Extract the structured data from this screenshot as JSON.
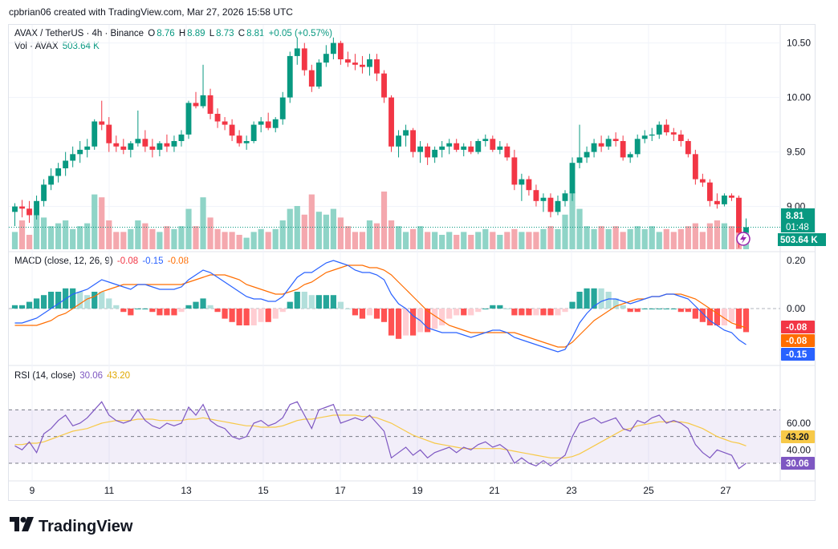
{
  "header": {
    "caption": "cpbrian06 created with TradingView.com, Mar 27, 2026 15:58 UTC"
  },
  "legend": {
    "symbol": "AVAX / TetherUS · 4h · Binance",
    "o_label": "O",
    "o": "8.76",
    "h_label": "H",
    "h": "8.89",
    "l_label": "L",
    "l": "8.73",
    "c_label": "C",
    "c": "8.81",
    "change": "+0.05 (+0.57%)",
    "vol_label": "Vol · AVAX",
    "vol": "503.64 K",
    "macd_label": "MACD (close, 12, 26, 9)",
    "macd_hist": "-0.08",
    "macd_line": "-0.15",
    "macd_signal": "-0.08",
    "rsi_label": "RSI (14, close)",
    "rsi": "30.06",
    "rsi_ma": "43.20"
  },
  "price_axis": [
    "10.50",
    "10.00",
    "9.50",
    "9.00"
  ],
  "macd_axis": [
    "0.20",
    "0.00"
  ],
  "rsi_axis": [
    "60.00",
    "40.00"
  ],
  "time_axis": [
    "9",
    "11",
    "13",
    "15",
    "17",
    "19",
    "21",
    "23",
    "25",
    "27"
  ],
  "badges": {
    "price": "8.81",
    "countdown": "01:48",
    "volume": "503.64 K",
    "macd_hist": "-0.08",
    "macd_signal": "-0.08",
    "macd_line": "-0.15",
    "rsi_ma": "43.20",
    "rsi": "30.06"
  },
  "colors": {
    "up": "#089981",
    "down": "#f23645",
    "vol_up": "#8fd4c7",
    "vol_down": "#f4a8ae",
    "macd_line": "#2962ff",
    "signal": "#ff6d00",
    "rsi": "#7e57c2",
    "rsi_ma": "#f7c948"
  },
  "brand": "TradingView",
  "chart_data": {
    "type": "candlestick",
    "title": "AVAX / TetherUS · 4h · Binance",
    "ylim": [
      8.6,
      10.6
    ],
    "x_ticks": [
      "9",
      "11",
      "13",
      "15",
      "17",
      "19",
      "21",
      "23",
      "25",
      "27"
    ],
    "ohlc": [
      [
        8.95,
        9.03,
        8.82,
        9.0
      ],
      [
        9.0,
        9.06,
        8.9,
        8.98
      ],
      [
        8.98,
        9.05,
        8.85,
        8.92
      ],
      [
        8.92,
        9.1,
        8.88,
        9.05
      ],
      [
        9.05,
        9.25,
        9.0,
        9.2
      ],
      [
        9.2,
        9.35,
        9.15,
        9.28
      ],
      [
        9.28,
        9.4,
        9.22,
        9.35
      ],
      [
        9.35,
        9.5,
        9.28,
        9.42
      ],
      [
        9.42,
        9.55,
        9.36,
        9.48
      ],
      [
        9.48,
        9.6,
        9.4,
        9.52
      ],
      [
        9.52,
        9.62,
        9.45,
        9.55
      ],
      [
        9.55,
        9.8,
        9.52,
        9.78
      ],
      [
        9.78,
        9.97,
        9.7,
        9.75
      ],
      [
        9.75,
        9.82,
        9.5,
        9.58
      ],
      [
        9.58,
        9.65,
        9.5,
        9.55
      ],
      [
        9.55,
        9.62,
        9.48,
        9.52
      ],
      [
        9.52,
        9.6,
        9.45,
        9.58
      ],
      [
        9.58,
        9.88,
        9.55,
        9.62
      ],
      [
        9.62,
        9.7,
        9.5,
        9.55
      ],
      [
        9.55,
        9.62,
        9.45,
        9.52
      ],
      [
        9.52,
        9.6,
        9.46,
        9.58
      ],
      [
        9.58,
        9.66,
        9.5,
        9.55
      ],
      [
        9.55,
        9.65,
        9.5,
        9.6
      ],
      [
        9.6,
        9.7,
        9.55,
        9.66
      ],
      [
        9.66,
        9.97,
        9.62,
        9.95
      ],
      [
        9.95,
        10.05,
        9.9,
        9.92
      ],
      [
        9.92,
        10.3,
        9.9,
        10.02
      ],
      [
        10.02,
        10.08,
        9.8,
        9.85
      ],
      [
        9.85,
        9.9,
        9.72,
        9.78
      ],
      [
        9.78,
        9.82,
        9.7,
        9.75
      ],
      [
        9.75,
        9.8,
        9.6,
        9.65
      ],
      [
        9.65,
        9.7,
        9.55,
        9.58
      ],
      [
        9.58,
        9.65,
        9.52,
        9.6
      ],
      [
        9.6,
        9.78,
        9.58,
        9.75
      ],
      [
        9.75,
        9.82,
        9.68,
        9.78
      ],
      [
        9.78,
        9.86,
        9.7,
        9.72
      ],
      [
        9.72,
        9.82,
        9.68,
        9.8
      ],
      [
        9.8,
        10.05,
        9.75,
        10.0
      ],
      [
        10.0,
        10.42,
        9.95,
        10.38
      ],
      [
        10.38,
        10.55,
        10.3,
        10.45
      ],
      [
        10.45,
        10.5,
        10.2,
        10.25
      ],
      [
        10.25,
        10.3,
        10.05,
        10.1
      ],
      [
        10.1,
        10.35,
        10.08,
        10.32
      ],
      [
        10.32,
        10.48,
        10.28,
        10.4
      ],
      [
        10.4,
        10.55,
        10.35,
        10.5
      ],
      [
        10.5,
        10.52,
        10.3,
        10.35
      ],
      [
        10.35,
        10.42,
        10.28,
        10.32
      ],
      [
        10.32,
        10.4,
        10.25,
        10.3
      ],
      [
        10.3,
        10.38,
        10.22,
        10.28
      ],
      [
        10.28,
        10.4,
        10.2,
        10.35
      ],
      [
        10.35,
        10.4,
        10.15,
        10.22
      ],
      [
        10.22,
        10.25,
        9.95,
        10.0
      ],
      [
        10.0,
        10.02,
        9.5,
        9.55
      ],
      [
        9.55,
        9.7,
        9.45,
        9.65
      ],
      [
        9.65,
        9.75,
        9.55,
        9.7
      ],
      [
        9.7,
        9.72,
        9.45,
        9.5
      ],
      [
        9.5,
        9.6,
        9.4,
        9.55
      ],
      [
        9.55,
        9.58,
        9.38,
        9.45
      ],
      [
        9.45,
        9.55,
        9.4,
        9.52
      ],
      [
        9.52,
        9.6,
        9.45,
        9.55
      ],
      [
        9.55,
        9.62,
        9.48,
        9.58
      ],
      [
        9.58,
        9.62,
        9.5,
        9.52
      ],
      [
        9.52,
        9.58,
        9.46,
        9.55
      ],
      [
        9.55,
        9.6,
        9.48,
        9.5
      ],
      [
        9.5,
        9.62,
        9.48,
        9.6
      ],
      [
        9.6,
        9.66,
        9.55,
        9.62
      ],
      [
        9.62,
        9.65,
        9.5,
        9.52
      ],
      [
        9.52,
        9.6,
        9.48,
        9.55
      ],
      [
        9.55,
        9.58,
        9.42,
        9.45
      ],
      [
        9.45,
        9.52,
        9.15,
        9.2
      ],
      [
        9.2,
        9.3,
        9.05,
        9.25
      ],
      [
        9.25,
        9.28,
        9.1,
        9.15
      ],
      [
        9.15,
        9.2,
        9.0,
        9.05
      ],
      [
        9.05,
        9.12,
        8.95,
        9.08
      ],
      [
        9.08,
        9.12,
        8.9,
        8.95
      ],
      [
        8.95,
        9.1,
        8.92,
        9.05
      ],
      [
        9.05,
        9.15,
        9.0,
        9.12
      ],
      [
        9.12,
        9.45,
        9.05,
        9.4
      ],
      [
        9.4,
        9.75,
        9.35,
        9.45
      ],
      [
        9.45,
        9.55,
        9.4,
        9.5
      ],
      [
        9.5,
        9.62,
        9.45,
        9.58
      ],
      [
        9.58,
        9.65,
        9.5,
        9.55
      ],
      [
        9.55,
        9.65,
        9.52,
        9.62
      ],
      [
        9.62,
        9.68,
        9.55,
        9.6
      ],
      [
        9.6,
        9.65,
        9.42,
        9.45
      ],
      [
        9.45,
        9.5,
        9.4,
        9.48
      ],
      [
        9.48,
        9.66,
        9.45,
        9.62
      ],
      [
        9.62,
        9.7,
        9.58,
        9.65
      ],
      [
        9.65,
        9.72,
        9.6,
        9.66
      ],
      [
        9.66,
        9.78,
        9.62,
        9.75
      ],
      [
        9.75,
        9.8,
        9.65,
        9.68
      ],
      [
        9.68,
        9.72,
        9.6,
        9.66
      ],
      [
        9.66,
        9.7,
        9.55,
        9.6
      ],
      [
        9.6,
        9.62,
        9.45,
        9.48
      ],
      [
        9.48,
        9.52,
        9.2,
        9.25
      ],
      [
        9.25,
        9.3,
        9.18,
        9.22
      ],
      [
        9.22,
        9.25,
        9.0,
        9.05
      ],
      [
        9.05,
        9.12,
        8.98,
        9.02
      ],
      [
        9.02,
        9.12,
        9.0,
        9.1
      ],
      [
        9.1,
        9.12,
        9.05,
        9.08
      ],
      [
        9.08,
        9.1,
        8.62,
        8.76
      ],
      [
        8.76,
        8.89,
        8.73,
        8.81
      ]
    ],
    "volume_rel": [
      0.3,
      0.5,
      0.25,
      0.6,
      0.55,
      0.4,
      0.45,
      0.5,
      0.35,
      0.4,
      0.45,
      0.95,
      0.9,
      0.5,
      0.3,
      0.3,
      0.35,
      0.5,
      0.45,
      0.35,
      0.3,
      0.4,
      0.35,
      0.4,
      0.7,
      0.4,
      0.9,
      0.55,
      0.35,
      0.3,
      0.3,
      0.25,
      0.2,
      0.3,
      0.35,
      0.3,
      0.35,
      0.5,
      0.7,
      0.75,
      0.6,
      0.95,
      0.65,
      0.6,
      0.7,
      0.55,
      0.4,
      0.3,
      0.3,
      0.5,
      0.45,
      1.0,
      0.5,
      0.4,
      0.3,
      0.35,
      0.4,
      0.3,
      0.3,
      0.25,
      0.3,
      0.25,
      0.3,
      0.25,
      0.3,
      0.35,
      0.3,
      0.25,
      0.3,
      0.35,
      0.3,
      0.3,
      0.3,
      0.35,
      0.4,
      0.35,
      0.6,
      1.0,
      0.7,
      0.4,
      0.35,
      0.4,
      0.35,
      0.4,
      0.3,
      0.35,
      0.4,
      0.35,
      0.4,
      0.3,
      0.35,
      0.3,
      0.35,
      0.4,
      0.45,
      0.3,
      0.45,
      0.5,
      0.45,
      0.4,
      0.35,
      0.3
    ],
    "macd_line": [
      -0.06,
      -0.06,
      -0.05,
      -0.04,
      -0.02,
      0.0,
      0.02,
      0.04,
      0.06,
      0.07,
      0.08,
      0.1,
      0.12,
      0.11,
      0.1,
      0.09,
      0.08,
      0.1,
      0.1,
      0.09,
      0.08,
      0.08,
      0.08,
      0.09,
      0.12,
      0.14,
      0.16,
      0.15,
      0.13,
      0.11,
      0.09,
      0.07,
      0.05,
      0.04,
      0.04,
      0.03,
      0.03,
      0.05,
      0.09,
      0.13,
      0.15,
      0.15,
      0.17,
      0.19,
      0.2,
      0.19,
      0.18,
      0.16,
      0.15,
      0.15,
      0.14,
      0.12,
      0.06,
      0.02,
      0.0,
      -0.03,
      -0.05,
      -0.08,
      -0.09,
      -0.1,
      -0.1,
      -0.1,
      -0.11,
      -0.12,
      -0.11,
      -0.1,
      -0.09,
      -0.09,
      -0.1,
      -0.12,
      -0.13,
      -0.14,
      -0.15,
      -0.16,
      -0.17,
      -0.18,
      -0.17,
      -0.12,
      -0.06,
      -0.02,
      0.01,
      0.03,
      0.04,
      0.04,
      0.03,
      0.02,
      0.03,
      0.04,
      0.05,
      0.05,
      0.06,
      0.06,
      0.05,
      0.04,
      0.01,
      -0.02,
      -0.05,
      -0.07,
      -0.09,
      -0.1,
      -0.13,
      -0.15
    ],
    "signal": [
      -0.07,
      -0.07,
      -0.07,
      -0.07,
      -0.06,
      -0.05,
      -0.03,
      -0.02,
      0.0,
      0.02,
      0.04,
      0.05,
      0.07,
      0.08,
      0.09,
      0.1,
      0.1,
      0.1,
      0.1,
      0.1,
      0.1,
      0.1,
      0.1,
      0.1,
      0.11,
      0.12,
      0.13,
      0.14,
      0.14,
      0.14,
      0.13,
      0.12,
      0.1,
      0.09,
      0.08,
      0.07,
      0.06,
      0.06,
      0.07,
      0.08,
      0.1,
      0.11,
      0.13,
      0.15,
      0.16,
      0.17,
      0.18,
      0.18,
      0.18,
      0.17,
      0.17,
      0.16,
      0.14,
      0.11,
      0.08,
      0.05,
      0.02,
      -0.01,
      -0.03,
      -0.05,
      -0.07,
      -0.08,
      -0.09,
      -0.1,
      -0.1,
      -0.1,
      -0.1,
      -0.1,
      -0.1,
      -0.1,
      -0.11,
      -0.12,
      -0.13,
      -0.14,
      -0.15,
      -0.16,
      -0.16,
      -0.14,
      -0.11,
      -0.08,
      -0.05,
      -0.03,
      -0.01,
      0.01,
      0.02,
      0.03,
      0.04,
      0.04,
      0.05,
      0.05,
      0.06,
      0.06,
      0.06,
      0.05,
      0.04,
      0.02,
      0.0,
      -0.02,
      -0.04,
      -0.06,
      -0.07,
      -0.08
    ],
    "rsi": [
      43,
      40,
      46,
      38,
      52,
      56,
      62,
      66,
      58,
      60,
      64,
      70,
      76,
      66,
      62,
      60,
      62,
      70,
      62,
      58,
      56,
      60,
      58,
      60,
      72,
      66,
      74,
      62,
      58,
      56,
      50,
      48,
      50,
      60,
      62,
      58,
      60,
      64,
      74,
      76,
      66,
      56,
      70,
      72,
      74,
      60,
      62,
      64,
      62,
      66,
      60,
      54,
      34,
      38,
      42,
      36,
      40,
      34,
      38,
      40,
      42,
      38,
      42,
      40,
      44,
      46,
      42,
      44,
      40,
      30,
      34,
      30,
      28,
      32,
      28,
      32,
      36,
      50,
      60,
      62,
      64,
      60,
      62,
      64,
      56,
      54,
      62,
      60,
      64,
      66,
      60,
      62,
      60,
      56,
      44,
      38,
      34,
      40,
      38,
      36,
      26,
      30
    ],
    "rsi_ma": [
      44,
      44,
      45,
      45,
      46,
      48,
      50,
      52,
      54,
      55,
      56,
      58,
      60,
      61,
      62,
      62,
      62,
      63,
      63,
      63,
      62,
      62,
      62,
      62,
      63,
      63,
      64,
      63,
      62,
      61,
      60,
      59,
      58,
      58,
      57,
      57,
      57,
      58,
      60,
      62,
      63,
      63,
      64,
      65,
      66,
      66,
      66,
      66,
      65,
      65,
      64,
      62,
      60,
      57,
      54,
      51,
      49,
      47,
      45,
      44,
      43,
      42,
      41,
      41,
      41,
      41,
      41,
      41,
      40,
      39,
      38,
      37,
      36,
      35,
      34,
      34,
      34,
      35,
      37,
      40,
      43,
      46,
      49,
      52,
      55,
      56,
      58,
      59,
      60,
      61,
      61,
      61,
      61,
      60,
      58,
      56,
      53,
      50,
      48,
      46,
      45,
      43
    ]
  }
}
